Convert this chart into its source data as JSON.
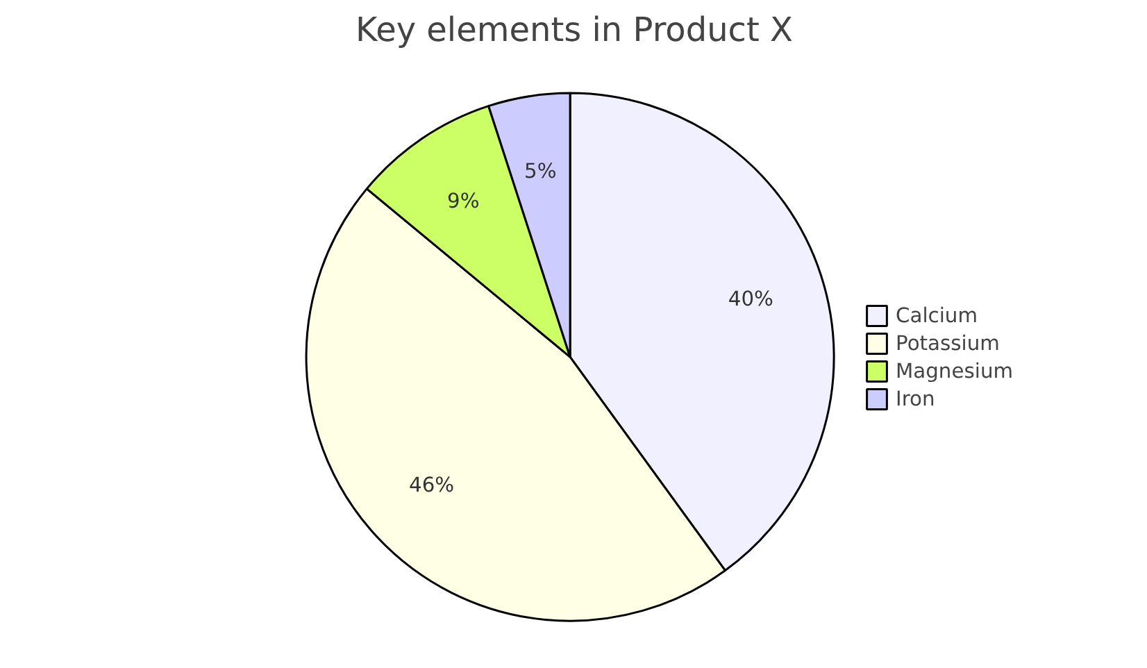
{
  "chart_data": {
    "type": "pie",
    "title": "Key elements in Product X",
    "categories": [
      "Calcium",
      "Potassium",
      "Magnesium",
      "Iron"
    ],
    "values": [
      40,
      46,
      9,
      5
    ],
    "value_labels": [
      "40%",
      "46%",
      "9%",
      "5%"
    ],
    "colors": [
      "#f0f0ff",
      "#ffffe6",
      "#ccff66",
      "#ccccff"
    ],
    "legend": "right"
  }
}
